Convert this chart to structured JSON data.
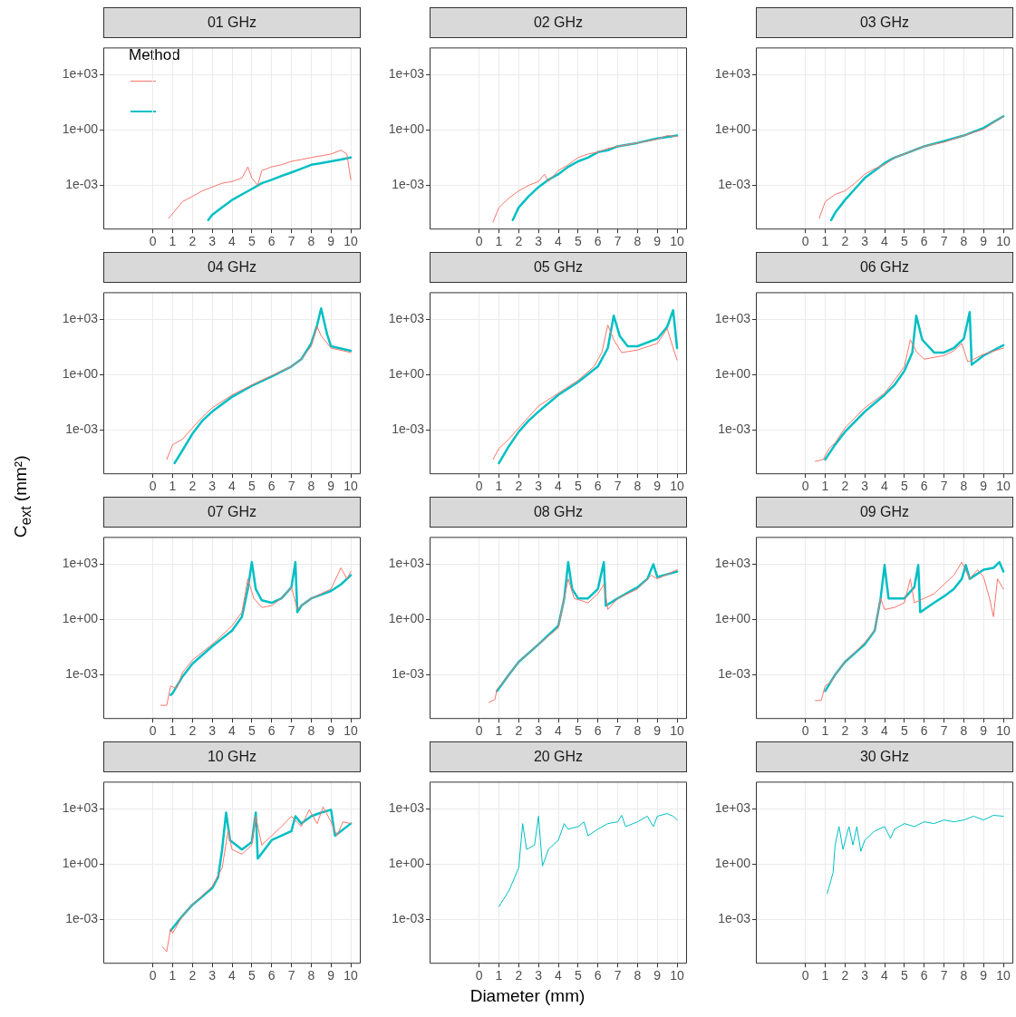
{
  "chart_data": [
    {
      "type": "line",
      "title": "01 GHz",
      "legend_title": "Method",
      "log": "y",
      "grid": true,
      "xlim": [
        -2.5,
        10.5
      ],
      "xticks": [
        0,
        1,
        2,
        3,
        4,
        5,
        6,
        7,
        8,
        9,
        10
      ],
      "ylim": [
        4e-06,
        30000.0
      ],
      "yticks": [
        {
          "value": 0.001,
          "label": "1e-03"
        },
        {
          "value": 1,
          "label": "1e+00"
        },
        {
          "value": 1000,
          "label": "1e+03"
        }
      ],
      "series": [
        {
          "color": "#f8766d",
          "x": [
            0.8,
            1.5,
            2,
            2.5,
            3,
            3.5,
            4,
            4.5,
            4.8,
            5,
            5.3,
            5.5,
            6,
            6.5,
            7,
            7.5,
            8,
            8.5,
            9,
            9.5,
            9.8,
            10
          ],
          "values": [
            1.6e-05,
            0.00013,
            0.00025,
            0.0005,
            0.0008,
            0.0013,
            0.0016,
            0.0025,
            0.01,
            0.0025,
            0.001,
            0.0063,
            0.01,
            0.013,
            0.02,
            0.025,
            0.032,
            0.04,
            0.05,
            0.08,
            0.05,
            0.002
          ]
        },
        {
          "color": "#00bfc4",
          "x": [
            2.8,
            3,
            3.5,
            4,
            4.5,
            5,
            5.5,
            6,
            6.5,
            7,
            7.5,
            8,
            8.5,
            9,
            9.5,
            10
          ],
          "values": [
            1.3e-05,
            2.5e-05,
            6.3e-05,
            0.00016,
            0.00032,
            0.00063,
            0.0013,
            0.002,
            0.0032,
            0.005,
            0.008,
            0.013,
            0.016,
            0.02,
            0.025,
            0.032
          ]
        }
      ]
    },
    {
      "type": "line",
      "title": "02 GHz",
      "log": "y",
      "grid": true,
      "xlim": [
        -2.5,
        10.5
      ],
      "xticks": [
        0,
        1,
        2,
        3,
        4,
        5,
        6,
        7,
        8,
        9,
        10
      ],
      "ylim": [
        4e-06,
        30000.0
      ],
      "yticks": [
        {
          "value": 0.001,
          "label": "1e-03"
        },
        {
          "value": 1,
          "label": "1e+00"
        },
        {
          "value": 1000,
          "label": "1e+03"
        }
      ],
      "series": [
        {
          "color": "#f8766d",
          "x": [
            0.7,
            1,
            1.5,
            2,
            2.5,
            3,
            3.3,
            3.5,
            4,
            4.5,
            5,
            5.5,
            6,
            6.5,
            7,
            7.5,
            8,
            8.5,
            9,
            9.5,
            10
          ],
          "values": [
            1e-05,
            6.3e-05,
            0.0002,
            0.0005,
            0.001,
            0.0016,
            0.004,
            0.0016,
            0.0063,
            0.013,
            0.032,
            0.05,
            0.063,
            0.1,
            0.13,
            0.16,
            0.2,
            0.25,
            0.32,
            0.5,
            0.45
          ]
        },
        {
          "color": "#00bfc4",
          "x": [
            1.7,
            2,
            2.5,
            3,
            3.5,
            4,
            4.5,
            5,
            5.5,
            6,
            6.5,
            7,
            8,
            9,
            10
          ],
          "values": [
            1.3e-05,
            6.3e-05,
            0.00025,
            0.0008,
            0.002,
            0.004,
            0.01,
            0.02,
            0.032,
            0.063,
            0.08,
            0.13,
            0.2,
            0.35,
            0.5
          ]
        }
      ]
    },
    {
      "type": "line",
      "title": "03 GHz",
      "log": "y",
      "grid": true,
      "xlim": [
        -2.5,
        10.5
      ],
      "xticks": [
        0,
        1,
        2,
        3,
        4,
        5,
        6,
        7,
        8,
        9,
        10
      ],
      "ylim": [
        4e-06,
        30000.0
      ],
      "yticks": [
        {
          "value": 0.001,
          "label": "1e-03"
        },
        {
          "value": 1,
          "label": "1e+00"
        },
        {
          "value": 1000,
          "label": "1e+03"
        }
      ],
      "series": [
        {
          "color": "#f8766d",
          "x": [
            0.7,
            1,
            1.5,
            2,
            2.5,
            3,
            3.5,
            4,
            4.5,
            5,
            5.5,
            6,
            7,
            8,
            9,
            10
          ],
          "values": [
            1.6e-05,
            0.00013,
            0.00032,
            0.0005,
            0.0013,
            0.004,
            0.008,
            0.013,
            0.032,
            0.05,
            0.08,
            0.13,
            0.22,
            0.5,
            1.1,
            5.6
          ]
        },
        {
          "color": "#00bfc4",
          "x": [
            1.3,
            1.5,
            2,
            2.5,
            3,
            3.5,
            4,
            4.5,
            5,
            6,
            7,
            8,
            9,
            10
          ],
          "values": [
            1.3e-05,
            3.2e-05,
            0.00016,
            0.00063,
            0.0025,
            0.0063,
            0.016,
            0.032,
            0.05,
            0.13,
            0.25,
            0.5,
            1.3,
            5.6
          ]
        }
      ]
    },
    {
      "type": "line",
      "title": "04 GHz",
      "ylabel": "C$_{ext}$ (mm²)",
      "log": "y",
      "grid": true,
      "xlim": [
        -2.5,
        10.5
      ],
      "xticks": [
        0,
        1,
        2,
        3,
        4,
        5,
        6,
        7,
        8,
        9,
        10
      ],
      "ylim": [
        4e-06,
        30000.0
      ],
      "yticks": [
        {
          "value": 0.001,
          "label": "1e-03"
        },
        {
          "value": 1,
          "label": "1e+00"
        },
        {
          "value": 1000,
          "label": "1e+03"
        }
      ],
      "series": [
        {
          "color": "#f8766d",
          "x": [
            0.7,
            1,
            1.5,
            2,
            2.5,
            3,
            4,
            5,
            6,
            7,
            7.5,
            8,
            8.3,
            8.5,
            9,
            10
          ],
          "values": [
            2.5e-05,
            0.00016,
            0.00032,
            0.0013,
            0.005,
            0.016,
            0.08,
            0.28,
            0.9,
            2.8,
            7,
            35,
            400,
            130,
            28,
            16
          ]
        },
        {
          "color": "#00bfc4",
          "x": [
            1.1,
            1.5,
            2,
            2.5,
            3,
            4,
            5,
            6,
            7,
            7.5,
            8,
            8.3,
            8.5,
            8.8,
            9,
            10
          ],
          "values": [
            1.6e-05,
            8e-05,
            0.00063,
            0.0032,
            0.01,
            0.063,
            0.25,
            0.8,
            2.8,
            7,
            50,
            500,
            4000,
            160,
            35,
            20
          ]
        }
      ]
    },
    {
      "type": "line",
      "title": "05 GHz",
      "log": "y",
      "grid": true,
      "xlim": [
        -2.5,
        10.5
      ],
      "xticks": [
        0,
        1,
        2,
        3,
        4,
        5,
        6,
        7,
        8,
        9,
        10
      ],
      "ylim": [
        4e-06,
        30000.0
      ],
      "yticks": [
        {
          "value": 0.001,
          "label": "1e-03"
        },
        {
          "value": 1,
          "label": "1e+00"
        },
        {
          "value": 1000,
          "label": "1e+03"
        }
      ],
      "series": [
        {
          "color": "#f8766d",
          "x": [
            0.7,
            1,
            1.5,
            2,
            2.5,
            3,
            4,
            5,
            5.8,
            6.2,
            6.5,
            6.8,
            7.2,
            8,
            9,
            9.5,
            9.8,
            10
          ],
          "values": [
            2.5e-05,
            0.0001,
            0.00032,
            0.0013,
            0.005,
            0.02,
            0.1,
            0.5,
            2.8,
            16,
            500,
            80,
            16,
            22,
            50,
            320,
            28,
            6.3
          ]
        },
        {
          "color": "#00bfc4",
          "x": [
            1,
            1.5,
            2,
            2.5,
            3,
            4,
            5,
            6,
            6.5,
            6.8,
            7.1,
            7.5,
            8,
            9,
            9.5,
            9.8,
            10
          ],
          "values": [
            1.6e-05,
            0.00013,
            0.0008,
            0.0032,
            0.01,
            0.08,
            0.4,
            2.8,
            28,
            1600,
            130,
            35,
            35,
            90,
            400,
            3200,
            28
          ]
        }
      ]
    },
    {
      "type": "line",
      "title": "06 GHz",
      "log": "y",
      "grid": true,
      "xlim": [
        -2.5,
        10.5
      ],
      "xticks": [
        0,
        1,
        2,
        3,
        4,
        5,
        6,
        7,
        8,
        9,
        10
      ],
      "ylim": [
        4e-06,
        30000.0
      ],
      "yticks": [
        {
          "value": 0.001,
          "label": "1e-03"
        },
        {
          "value": 1,
          "label": "1e+00"
        },
        {
          "value": 1000,
          "label": "1e+03"
        }
      ],
      "series": [
        {
          "color": "#f8766d",
          "x": [
            0.5,
            0.9,
            1.2,
            1.5,
            2,
            3,
            4,
            4.5,
            5,
            5.3,
            5.6,
            6,
            7,
            7.5,
            7.9,
            8.2,
            8.5,
            9,
            10
          ],
          "values": [
            2e-05,
            2.5e-05,
            0.0001,
            0.0002,
            0.0013,
            0.016,
            0.1,
            0.5,
            2.8,
            80,
            18,
            7,
            11,
            20,
            50,
            5,
            7,
            13,
            28
          ]
        },
        {
          "color": "#00bfc4",
          "x": [
            1,
            1.5,
            2,
            3,
            4,
            4.5,
            5,
            5.4,
            5.6,
            5.9,
            6.5,
            7,
            7.5,
            8,
            8.3,
            8.4,
            9,
            10
          ],
          "values": [
            2.5e-05,
            0.00016,
            0.0008,
            0.01,
            0.08,
            0.28,
            1.6,
            16,
            1600,
            80,
            16,
            16,
            28,
            90,
            2500,
            3.5,
            11,
            40
          ]
        }
      ]
    },
    {
      "type": "line",
      "title": "07 GHz",
      "log": "y",
      "grid": true,
      "xlim": [
        -2.5,
        10.5
      ],
      "xticks": [
        0,
        1,
        2,
        3,
        4,
        5,
        6,
        7,
        8,
        9,
        10
      ],
      "ylim": [
        4e-06,
        30000.0
      ],
      "yticks": [
        {
          "value": 0.001,
          "label": "1e-03"
        },
        {
          "value": 1,
          "label": "1e+00"
        },
        {
          "value": 1000,
          "label": "1e+03"
        }
      ],
      "series": [
        {
          "color": "#f8766d",
          "x": [
            0.4,
            0.7,
            0.9,
            1.2,
            1.5,
            2,
            3,
            3.5,
            4,
            4.5,
            4.8,
            5.1,
            5.5,
            6,
            6.5,
            7,
            7.3,
            7.5,
            8,
            9,
            9.5,
            9.8,
            10
          ],
          "values": [
            2.2e-05,
            2.2e-05,
            0.00025,
            0.00018,
            0.0013,
            0.0063,
            0.045,
            0.14,
            0.45,
            2.5,
            160,
            14,
            4.5,
            5.6,
            14,
            56,
            3.5,
            5.6,
            14,
            45,
            630,
            160,
            400
          ]
        },
        {
          "color": "#00bfc4",
          "x": [
            0.9,
            1,
            1.5,
            2,
            3,
            4,
            4.5,
            4.8,
            5,
            5.2,
            5.5,
            6,
            6.5,
            7,
            7.2,
            7.3,
            7.5,
            8,
            9,
            9.5,
            10
          ],
          "values": [
            8e-05,
            0.0001,
            0.0008,
            0.004,
            0.035,
            0.25,
            1.4,
            45,
            1300,
            45,
            11,
            8,
            14,
            56,
            1300,
            2.5,
            5.6,
            14,
            35,
            80,
            250
          ]
        }
      ]
    },
    {
      "type": "line",
      "title": "08 GHz",
      "log": "y",
      "grid": true,
      "xlim": [
        -2.5,
        10.5
      ],
      "xticks": [
        0,
        1,
        2,
        3,
        4,
        5,
        6,
        7,
        8,
        9,
        10
      ],
      "ylim": [
        4e-06,
        30000.0
      ],
      "yticks": [
        {
          "value": 0.001,
          "label": "1e-03"
        },
        {
          "value": 1,
          "label": "1e+00"
        },
        {
          "value": 1000,
          "label": "1e+03"
        }
      ],
      "series": [
        {
          "color": "#f8766d",
          "x": [
            0.5,
            0.8,
            0.9,
            1.3,
            1.5,
            2,
            3,
            4,
            4.2,
            4.5,
            4.8,
            5.5,
            6,
            6.3,
            6.5,
            7,
            8,
            8.7,
            9,
            10
          ],
          "values": [
            3.2e-05,
            4.5e-05,
            0.00016,
            0.0005,
            0.001,
            0.005,
            0.045,
            0.35,
            4.5,
            160,
            14,
            8,
            25,
            80,
            3.5,
            14,
            45,
            250,
            160,
            500
          ]
        },
        {
          "color": "#00bfc4",
          "x": [
            0.9,
            1.5,
            2,
            3,
            4,
            4.3,
            4.5,
            4.7,
            5,
            5.5,
            6,
            6.3,
            6.4,
            7,
            8,
            8.5,
            8.8,
            9,
            10
          ],
          "values": [
            0.00013,
            0.001,
            0.005,
            0.045,
            0.45,
            14,
            1300,
            45,
            14,
            14,
            45,
            1300,
            5.6,
            14,
            56,
            160,
            1000,
            200,
            400
          ]
        }
      ]
    },
    {
      "type": "line",
      "title": "09 GHz",
      "log": "y",
      "grid": true,
      "xlim": [
        -2.5,
        10.5
      ],
      "xticks": [
        0,
        1,
        2,
        3,
        4,
        5,
        6,
        7,
        8,
        9,
        10
      ],
      "ylim": [
        4e-06,
        30000.0
      ],
      "yticks": [
        {
          "value": 0.001,
          "label": "1e-03"
        },
        {
          "value": 1,
          "label": "1e+00"
        },
        {
          "value": 1000,
          "label": "1e+03"
        }
      ],
      "series": [
        {
          "color": "#f8766d",
          "x": [
            0.5,
            0.8,
            1,
            1.3,
            1.5,
            2,
            3,
            3.5,
            3.8,
            4,
            4.5,
            5,
            5.3,
            5.5,
            6,
            6.5,
            7,
            7.5,
            7.9,
            8.3,
            8.7,
            9,
            9.3,
            9.5,
            9.7,
            10
          ],
          "values": [
            4e-05,
            4e-05,
            0.00025,
            0.0004,
            0.001,
            0.005,
            0.056,
            0.25,
            14,
            3.5,
            4.5,
            8,
            160,
            8,
            14,
            25,
            80,
            250,
            1300,
            160,
            500,
            200,
            14,
            1.4,
            160,
            45
          ]
        },
        {
          "color": "#00bfc4",
          "x": [
            1,
            1.5,
            2,
            3,
            3.5,
            3.8,
            4,
            4.2,
            5,
            5.5,
            5.7,
            5.8,
            6.5,
            7,
            7.5,
            7.9,
            8.1,
            8.3,
            9,
            9.5,
            9.8,
            10
          ],
          "values": [
            0.00013,
            0.001,
            0.005,
            0.045,
            0.25,
            14,
            900,
            14,
            14,
            56,
            900,
            2.5,
            8,
            18,
            45,
            160,
            900,
            160,
            500,
            630,
            1300,
            400
          ]
        }
      ]
    },
    {
      "type": "line",
      "title": "10 GHz",
      "log": "y",
      "grid": true,
      "xlim": [
        -2.5,
        10.5
      ],
      "xticks": [
        0,
        1,
        2,
        3,
        4,
        5,
        6,
        7,
        8,
        9,
        10
      ],
      "ylim": [
        4e-06,
        30000.0
      ],
      "yticks": [
        {
          "value": 0.001,
          "label": "1e-03"
        },
        {
          "value": 1,
          "label": "1e+00"
        },
        {
          "value": 1000,
          "label": "1e+03"
        }
      ],
      "series": [
        {
          "color": "#f8766d",
          "x": [
            0.5,
            0.7,
            0.9,
            1,
            1.5,
            2,
            3,
            3.5,
            3.8,
            4,
            4.5,
            5,
            5.2,
            5.5,
            6,
            6.5,
            7,
            7.5,
            7.9,
            8.3,
            8.6,
            9,
            9.3,
            9.6,
            10
          ],
          "values": [
            3.2e-05,
            1.8e-05,
            0.00032,
            0.00018,
            0.0016,
            0.0063,
            0.063,
            0.63,
            63,
            6.3,
            3.5,
            11,
            400,
            11,
            35,
            110,
            400,
            110,
            900,
            160,
            1300,
            200,
            35,
            200,
            160
          ]
        },
        {
          "color": "#00bfc4",
          "x": [
            0.9,
            1.5,
            2,
            3,
            3.3,
            3.5,
            3.7,
            3.9,
            4.5,
            5,
            5.2,
            5.3,
            6,
            7,
            7.2,
            7.5,
            8,
            8.5,
            9,
            9.2,
            10
          ],
          "values": [
            0.00025,
            0.0016,
            0.0063,
            0.05,
            0.2,
            6.3,
            630,
            20,
            6.3,
            16,
            630,
            2,
            20,
            63,
            400,
            160,
            400,
            630,
            900,
            35,
            160
          ]
        }
      ]
    },
    {
      "type": "line",
      "title": "20 GHz",
      "xlabel": "Diameter (mm)",
      "log": "y",
      "grid": true,
      "xlim": [
        -2.5,
        10.5
      ],
      "xticks": [
        0,
        1,
        2,
        3,
        4,
        5,
        6,
        7,
        8,
        9,
        10
      ],
      "ylim": [
        4e-06,
        30000.0
      ],
      "yticks": [
        {
          "value": 0.001,
          "label": "1e-03"
        },
        {
          "value": 1,
          "label": "1e+00"
        },
        {
          "value": 1000,
          "label": "1e+03"
        }
      ],
      "series": [
        {
          "color": "#00bfc4",
          "x": [
            1,
            1.5,
            2,
            2.2,
            2.4,
            2.8,
            3,
            3.2,
            3.5,
            4,
            4.3,
            4.5,
            5,
            5.3,
            5.5,
            6,
            6.5,
            7,
            7.2,
            7.4,
            8,
            8.5,
            8.8,
            9,
            9.5,
            9.8,
            10
          ],
          "values": [
            0.005,
            0.035,
            0.63,
            160,
            6.3,
            11,
            400,
            0.8,
            6.3,
            20,
            160,
            80,
            110,
            200,
            35,
            80,
            160,
            200,
            450,
            110,
            200,
            400,
            110,
            400,
            560,
            400,
            250
          ]
        }
      ]
    },
    {
      "type": "line",
      "title": "30 GHz",
      "log": "y",
      "grid": true,
      "xlim": [
        -2.5,
        10.5
      ],
      "xticks": [
        0,
        1,
        2,
        3,
        4,
        5,
        6,
        7,
        8,
        9,
        10
      ],
      "ylim": [
        4e-06,
        30000.0
      ],
      "yticks": [
        {
          "value": 0.001,
          "label": "1e-03"
        },
        {
          "value": 1,
          "label": "1e+00"
        },
        {
          "value": 1000,
          "label": "1e+03"
        }
      ],
      "series": [
        {
          "color": "#00bfc4",
          "x": [
            1.1,
            1.4,
            1.5,
            1.7,
            1.9,
            2.2,
            2.4,
            2.6,
            2.8,
            3,
            3.5,
            4,
            4.3,
            4.5,
            5,
            5.5,
            6,
            6.5,
            7,
            7.5,
            8,
            8.5,
            9,
            9.5,
            10
          ],
          "values": [
            0.025,
            0.35,
            11,
            110,
            6.3,
            110,
            11,
            110,
            5,
            20,
            63,
            110,
            25,
            80,
            160,
            110,
            200,
            160,
            250,
            200,
            250,
            400,
            250,
            450,
            400
          ]
        }
      ]
    }
  ]
}
